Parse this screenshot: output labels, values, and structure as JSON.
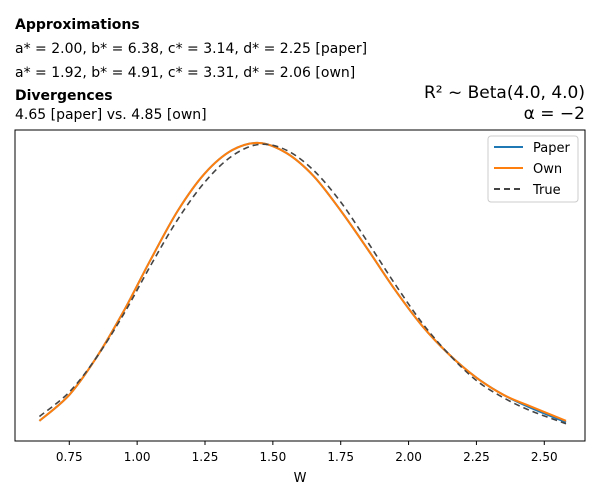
{
  "header": {
    "approx_title": "Approximations",
    "approx_paper": "a* = 2.00, b* = 6.38, c* = 3.14, d* = 2.25 [paper]",
    "approx_own": "a* = 1.92, b* = 4.91, c* = 3.31, d* = 2.06 [own]",
    "div_title": "Divergences",
    "div_values": "4.65 [paper] vs. 4.85 [own]",
    "dist_line": "R² ~  Beta(4.0, 4.0)",
    "alpha_line": "α = −2"
  },
  "chart_data": {
    "type": "line",
    "title": "",
    "xlabel": "W",
    "ylabel": "",
    "xlim": [
      0.55,
      2.65
    ],
    "xticks": [
      0.75,
      1.0,
      1.25,
      1.5,
      1.75,
      2.0,
      2.25,
      2.5
    ],
    "xtick_labels": [
      "0.75",
      "1.00",
      "1.25",
      "1.50",
      "1.75",
      "2.00",
      "2.25",
      "2.50"
    ],
    "ylim": [
      0.0,
      1.08
    ],
    "legend_position": "top-right",
    "series": [
      {
        "name": "Paper",
        "color": "#1f77b4",
        "dash": "",
        "x": [
          0.64,
          0.75,
          0.85,
          0.95,
          1.05,
          1.15,
          1.25,
          1.35,
          1.45,
          1.55,
          1.65,
          1.75,
          1.85,
          1.95,
          2.05,
          2.15,
          2.25,
          2.35,
          2.45,
          2.58
        ],
        "y": [
          0.07,
          0.16,
          0.29,
          0.45,
          0.63,
          0.8,
          0.93,
          1.01,
          1.035,
          1.0,
          0.92,
          0.8,
          0.665,
          0.525,
          0.4,
          0.3,
          0.22,
          0.16,
          0.115,
          0.065
        ]
      },
      {
        "name": "Own",
        "color": "#ff7f0e",
        "dash": "",
        "x": [
          0.64,
          0.75,
          0.85,
          0.95,
          1.05,
          1.15,
          1.25,
          1.35,
          1.45,
          1.55,
          1.65,
          1.75,
          1.85,
          1.95,
          2.05,
          2.15,
          2.25,
          2.35,
          2.45,
          2.58
        ],
        "y": [
          0.07,
          0.16,
          0.29,
          0.45,
          0.63,
          0.8,
          0.93,
          1.01,
          1.035,
          1.0,
          0.92,
          0.8,
          0.665,
          0.525,
          0.4,
          0.3,
          0.22,
          0.16,
          0.12,
          0.07
        ]
      },
      {
        "name": "True",
        "color": "#444444",
        "dash": "6,4",
        "x": [
          0.64,
          0.75,
          0.85,
          0.95,
          1.05,
          1.15,
          1.25,
          1.35,
          1.45,
          1.55,
          1.65,
          1.75,
          1.85,
          1.95,
          2.05,
          2.15,
          2.25,
          2.35,
          2.45,
          2.58
        ],
        "y": [
          0.085,
          0.17,
          0.29,
          0.44,
          0.61,
          0.77,
          0.9,
          0.99,
          1.03,
          1.01,
          0.94,
          0.83,
          0.69,
          0.545,
          0.41,
          0.3,
          0.21,
          0.15,
          0.105,
          0.06
        ]
      }
    ]
  }
}
